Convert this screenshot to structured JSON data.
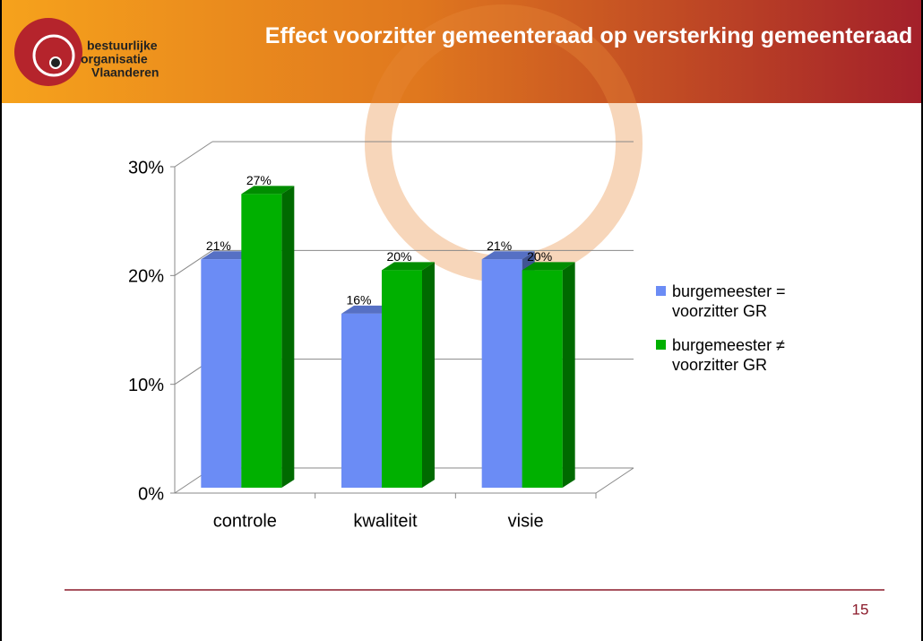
{
  "header": {
    "logo": [
      "bestuurlijke",
      "organisatie",
      "Vlaanderen"
    ]
  },
  "chart_data": {
    "type": "bar3d",
    "title": "Effect voorzitter gemeenteraad op versterking gemeenteraad",
    "categories": [
      "controle",
      "kwaliteit",
      "visie"
    ],
    "series": [
      {
        "name": "burgemeester = voorzitter GR",
        "color": "#6b8cf5",
        "values": [
          21,
          16,
          21
        ],
        "value_labels": [
          "21%",
          "16%",
          "21%"
        ]
      },
      {
        "name": "burgemeester ≠ voorzitter GR",
        "color": "#00b000",
        "values": [
          27,
          20,
          20
        ],
        "value_labels": [
          "27%",
          "20%",
          "20%"
        ]
      }
    ],
    "ylim": [
      0,
      30
    ],
    "yticks": [
      {
        "value": 0,
        "label": "0%"
      },
      {
        "value": 10,
        "label": "10%"
      },
      {
        "value": 20,
        "label": "20%"
      },
      {
        "value": 30,
        "label": "30%"
      }
    ],
    "grid": true,
    "legend": "right"
  },
  "footer": {
    "page": "15"
  }
}
